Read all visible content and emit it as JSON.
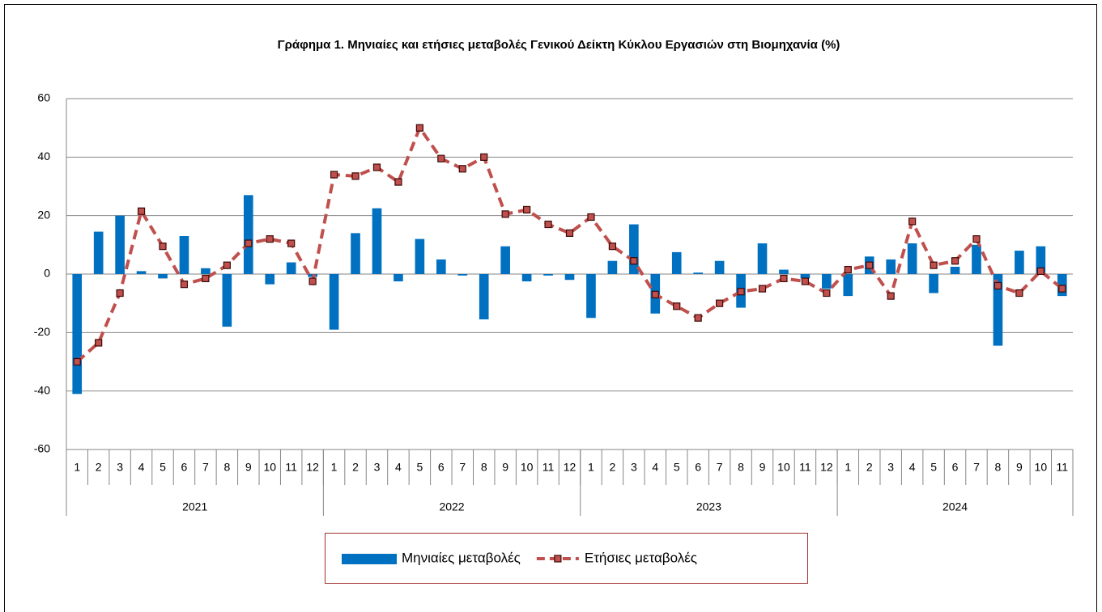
{
  "chart_data": {
    "type": "combo",
    "title": "Γράφημα 1. Μηνιαίες και ετήσιες μεταβολές  Γενικού Δείκτη Κύκλου Εργασιών στη Βιομηχανία (%)",
    "groups": [
      {
        "name": "2021",
        "categories": [
          "1",
          "2",
          "3",
          "4",
          "5",
          "6",
          "7",
          "8",
          "9",
          "10",
          "11",
          "12"
        ]
      },
      {
        "name": "2022",
        "categories": [
          "1",
          "2",
          "3",
          "4",
          "5",
          "6",
          "7",
          "8",
          "9",
          "10",
          "11",
          "12"
        ]
      },
      {
        "name": "2023",
        "categories": [
          "1",
          "2",
          "3",
          "4",
          "5",
          "6",
          "7",
          "8",
          "9",
          "10",
          "11",
          "12"
        ]
      },
      {
        "name": "2024",
        "categories": [
          "1",
          "2",
          "3",
          "4",
          "5",
          "6",
          "7",
          "8",
          "9",
          "10",
          "11"
        ]
      }
    ],
    "series": [
      {
        "name": "Μηνιαίες μεταβολές",
        "type": "bar",
        "color": "#0070c0",
        "values": [
          -41,
          14.5,
          20,
          1,
          -1.5,
          13,
          2,
          -18,
          27,
          -3.5,
          4,
          -1,
          -19,
          14,
          22.5,
          -2.5,
          12,
          5,
          -0.5,
          -15.5,
          9.5,
          -2.5,
          -0.5,
          -2,
          -15,
          4.5,
          17,
          -13.5,
          7.5,
          0.5,
          4.5,
          -11.5,
          10.5,
          1.5,
          -1.5,
          -5,
          -7.5,
          6,
          5,
          10.5,
          -6.5,
          2.5,
          10,
          -24.5,
          8,
          9.5,
          -7.5
        ]
      },
      {
        "name": "Ετήσιες μεταβολές",
        "type": "line",
        "color": "#c0504d",
        "values": [
          -30,
          -23.5,
          -6.5,
          21.5,
          9.5,
          -3.5,
          -1.5,
          3,
          10.5,
          12,
          10.5,
          -2.5,
          34,
          33.5,
          36.5,
          31.5,
          50,
          39.5,
          36,
          40,
          20.5,
          22,
          17,
          14,
          19.5,
          9.5,
          4.5,
          -7,
          -11,
          -15,
          -10,
          -6,
          -5,
          -1.5,
          -2.5,
          -6.5,
          1.5,
          3,
          -7.5,
          18,
          3,
          4.5,
          12,
          -4,
          -6.5,
          1,
          -5
        ]
      }
    ],
    "ylim": [
      -60,
      60
    ],
    "yticks": [
      -60,
      -40,
      -20,
      0,
      20,
      40,
      60
    ],
    "grid": true,
    "legend": "bottom"
  }
}
